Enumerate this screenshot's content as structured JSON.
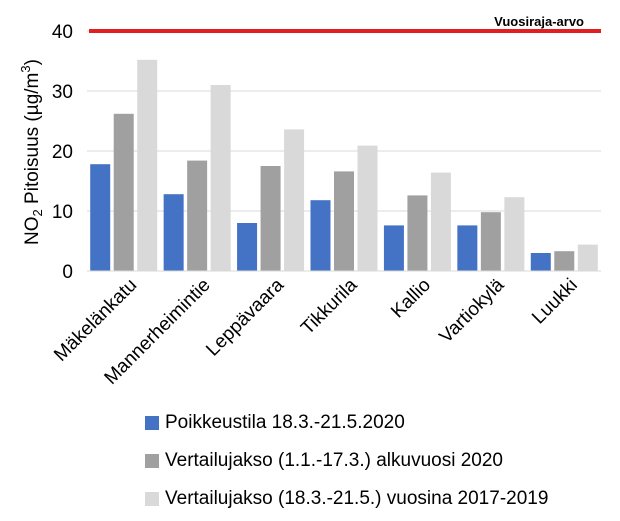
{
  "chart_data": {
    "type": "bar",
    "categories": [
      "Mäkelänkatu",
      "Mannerheimintie",
      "Leppävaara",
      "Tikkurila",
      "Kallio",
      "Vartiokylä",
      "Luukki"
    ],
    "series": [
      {
        "name": "Poikkeustila 18.3.-21.5.2020",
        "color": "#4472c4",
        "values": [
          17.8,
          12.8,
          8.0,
          11.8,
          7.6,
          7.6,
          3.0
        ]
      },
      {
        "name": "Vertailujakso (1.1.-17.3.) alkuvuosi 2020",
        "color": "#a0a0a0",
        "values": [
          26.2,
          18.4,
          17.5,
          16.6,
          12.6,
          9.8,
          3.3
        ]
      },
      {
        "name": "Vertailujakso (18.3.-21.5.) vuosina 2017-2019",
        "color": "#d9d9d9",
        "values": [
          35.2,
          31.0,
          23.6,
          20.9,
          16.4,
          12.3,
          4.4
        ]
      }
    ],
    "ylabel_prefix": "NO",
    "ylabel_subscript": "2",
    "ylabel_main": " Pitoisuus (µg/m",
    "ylabel_superscript": "3",
    "ylabel_suffix": ")",
    "ylim": [
      0,
      40
    ],
    "yticks": [
      0,
      10,
      20,
      30,
      40
    ],
    "grid": true,
    "reference_line": {
      "value": 40,
      "label": "Vuosiraja-arvo",
      "color": "#e02020"
    },
    "legend_position": "bottom"
  }
}
